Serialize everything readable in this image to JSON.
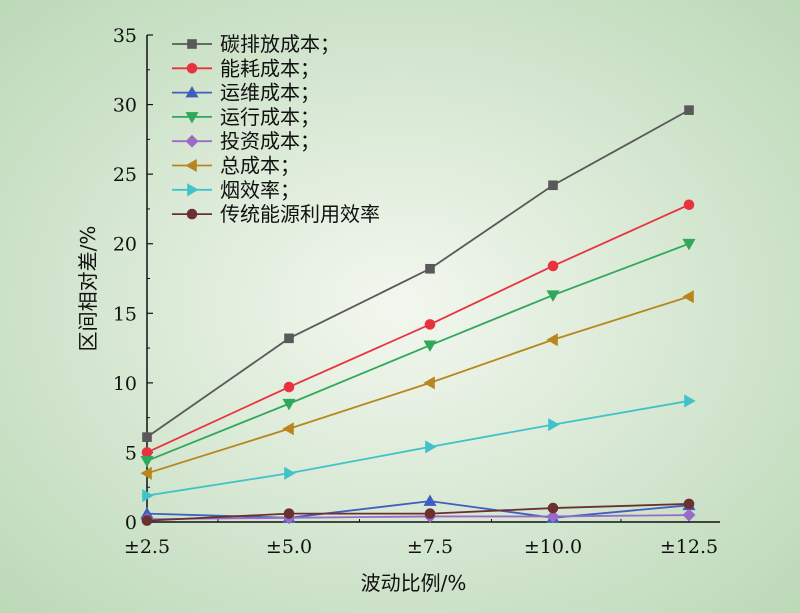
{
  "chart_data": {
    "type": "line",
    "xlabel": "波动比例/%",
    "ylabel": "区间相对差/%",
    "categories": [
      "±2.5",
      "±5.0",
      "±7.5",
      "±10.0",
      "±12.5"
    ],
    "ylim": [
      0,
      35
    ],
    "yticks": [
      0,
      5,
      10,
      15,
      20,
      25,
      30,
      35
    ],
    "grid": false,
    "legend_position": "top-left",
    "series": [
      {
        "name": "碳排放成本；",
        "color": "#595959",
        "marker": "square",
        "values": [
          6.1,
          13.2,
          18.2,
          24.2,
          29.6
        ]
      },
      {
        "name": "能耗成本；",
        "color": "#e8333f",
        "marker": "circle",
        "values": [
          5.0,
          9.7,
          14.2,
          18.4,
          22.8
        ]
      },
      {
        "name": "运维成本；",
        "color": "#3f5fbf",
        "marker": "triangle-up",
        "values": [
          0.6,
          0.3,
          1.5,
          0.3,
          1.2
        ]
      },
      {
        "name": "运行成本；",
        "color": "#2fa85a",
        "marker": "triangle-down",
        "values": [
          4.4,
          8.5,
          12.7,
          16.3,
          20.0
        ]
      },
      {
        "name": "投资成本；",
        "color": "#9b6bc8",
        "marker": "diamond",
        "values": [
          0.2,
          0.3,
          0.4,
          0.4,
          0.5
        ]
      },
      {
        "name": "总成本；",
        "color": "#b8861c",
        "marker": "triangle-left",
        "values": [
          3.5,
          6.7,
          10.0,
          13.1,
          16.2
        ]
      },
      {
        "name": "烟效率；",
        "color": "#3fc3c8",
        "marker": "triangle-right",
        "values": [
          1.9,
          3.5,
          5.4,
          7.0,
          8.7
        ]
      },
      {
        "name": "传统能源利用效率",
        "color": "#6b3030",
        "marker": "circle",
        "values": [
          0.1,
          0.6,
          0.6,
          1.0,
          1.3
        ]
      }
    ]
  },
  "style": {
    "background_center": "#f3f7ef",
    "background_edge": "#bcd9b8",
    "axis_color": "#111111"
  }
}
